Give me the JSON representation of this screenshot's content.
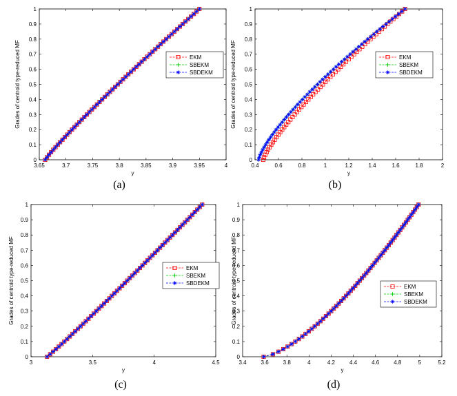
{
  "chart_data": [
    {
      "type": "line",
      "caption": "(a)",
      "xlabel": "y",
      "ylabel": "Grades of centroid type-reduced MF",
      "xlim": [
        3.65,
        4
      ],
      "ylim": [
        0,
        1
      ],
      "xticks": [
        "3.65",
        "3.7",
        "3.75",
        "3.8",
        "3.85",
        "3.9",
        "3.95",
        "4"
      ],
      "yticks": [
        "0",
        "0.1",
        "0.2",
        "0.3",
        "0.4",
        "0.5",
        "0.6",
        "0.7",
        "0.8",
        "0.9",
        "1"
      ],
      "grid": false,
      "legend_position": "right",
      "series": [
        {
          "name": "EKM",
          "color": "#ff0000",
          "marker": "square",
          "curve": {
            "x0": 3.661,
            "x1": 3.95,
            "shape": 0.92
          }
        },
        {
          "name": "SBEKM",
          "color": "#00cc00",
          "marker": "plus",
          "curve": {
            "x0": 3.661,
            "x1": 3.95,
            "shape": 0.92
          }
        },
        {
          "name": "SBDEKM",
          "color": "#0000ff",
          "marker": "star",
          "curve": {
            "x0": 3.661,
            "x1": 3.95,
            "shape": 0.92
          }
        }
      ]
    },
    {
      "type": "line",
      "caption": "(b)",
      "xlabel": "y",
      "ylabel": "Grades of centroid type-reduced MF",
      "xlim": [
        0.4,
        2
      ],
      "ylim": [
        0,
        1
      ],
      "xticks": [
        "0.4",
        "0.6",
        "0.8",
        "1",
        "1.2",
        "1.4",
        "1.6",
        "1.8",
        "2"
      ],
      "yticks": [
        "0",
        "0.1",
        "0.2",
        "0.3",
        "0.4",
        "0.5",
        "0.6",
        "0.7",
        "0.8",
        "0.9",
        "1"
      ],
      "grid": false,
      "legend_position": "right",
      "series": [
        {
          "name": "EKM",
          "color": "#ff0000",
          "marker": "square",
          "curve": {
            "x0": 0.47,
            "x1": 1.68,
            "shape": 0.8
          }
        },
        {
          "name": "SBEKM",
          "color": "#00cc00",
          "marker": "plus",
          "curve": {
            "x0": 0.43,
            "x1": 1.68,
            "shape": 0.76
          }
        },
        {
          "name": "SBDEKM",
          "color": "#0000ff",
          "marker": "star",
          "curve": {
            "x0": 0.43,
            "x1": 1.68,
            "shape": 0.76
          }
        }
      ]
    },
    {
      "type": "line",
      "caption": "(c)",
      "xlabel": "y",
      "ylabel": "Grades of centroid type-reduced MF",
      "xlim": [
        3,
        4.5
      ],
      "ylim": [
        0,
        1
      ],
      "xticks": [
        "3",
        "3.5",
        "4",
        "4.5"
      ],
      "yticks": [
        "0",
        "0.1",
        "0.2",
        "0.3",
        "0.4",
        "0.5",
        "0.6",
        "0.7",
        "0.8",
        "0.9",
        "1"
      ],
      "grid": false,
      "legend_position": "right",
      "series": [
        {
          "name": "EKM",
          "color": "#ff0000",
          "marker": "square",
          "curve": {
            "x0": 3.13,
            "x1": 4.39,
            "shape": 1.05
          }
        },
        {
          "name": "SBEKM",
          "color": "#00cc00",
          "marker": "plus",
          "curve": {
            "x0": 3.13,
            "x1": 4.39,
            "shape": 1.05
          }
        },
        {
          "name": "SBDEKM",
          "color": "#0000ff",
          "marker": "star",
          "curve": {
            "x0": 3.13,
            "x1": 4.39,
            "shape": 1.05
          }
        }
      ]
    },
    {
      "type": "line",
      "caption": "(d)",
      "xlabel": "y",
      "ylabel": "Grades of centroid type-reduced MF",
      "xlim": [
        3.4,
        5.2
      ],
      "ylim": [
        0,
        1
      ],
      "xticks": [
        "3.4",
        "3.6",
        "3.8",
        "4",
        "4.2",
        "4.4",
        "4.6",
        "4.8",
        "5",
        "5.2"
      ],
      "yticks": [
        "0",
        "0.1",
        "0.2",
        "0.3",
        "0.4",
        "0.5",
        "0.6",
        "0.7",
        "0.8",
        "0.9",
        "1"
      ],
      "grid": false,
      "legend_position": "right",
      "series": [
        {
          "name": "EKM",
          "color": "#ff0000",
          "marker": "square",
          "curve": {
            "x0": 3.59,
            "x1": 4.99,
            "shape": 1.45
          }
        },
        {
          "name": "SBEKM",
          "color": "#00cc00",
          "marker": "plus",
          "curve": {
            "x0": 3.59,
            "x1": 4.99,
            "shape": 1.45
          }
        },
        {
          "name": "SBDEKM",
          "color": "#0000ff",
          "marker": "star",
          "curve": {
            "x0": 3.59,
            "x1": 4.99,
            "shape": 1.45
          }
        }
      ]
    }
  ]
}
